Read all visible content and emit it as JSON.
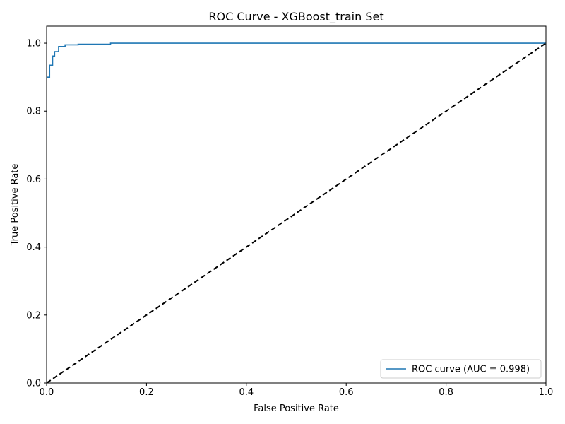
{
  "chart_data": {
    "type": "line",
    "title": "ROC Curve - XGBoost_train Set",
    "xlabel": "False Positive Rate",
    "ylabel": "True Positive Rate",
    "xlim": [
      0.0,
      1.0
    ],
    "ylim": [
      0.0,
      1.05
    ],
    "x_ticks": [
      "0.0",
      "0.2",
      "0.4",
      "0.6",
      "0.8",
      "1.0"
    ],
    "y_ticks": [
      "0.0",
      "0.2",
      "0.4",
      "0.6",
      "0.8",
      "1.0"
    ],
    "grid": false,
    "legend_position": "lower-right",
    "series": [
      {
        "name": "ROC curve (AUC = 0.998)",
        "color": "#1f77b4",
        "style": "solid",
        "points": [
          [
            0.0,
            0.9
          ],
          [
            0.006,
            0.9
          ],
          [
            0.006,
            0.935
          ],
          [
            0.012,
            0.935
          ],
          [
            0.012,
            0.962
          ],
          [
            0.016,
            0.962
          ],
          [
            0.016,
            0.975
          ],
          [
            0.024,
            0.975
          ],
          [
            0.024,
            0.99
          ],
          [
            0.037,
            0.99
          ],
          [
            0.037,
            0.995
          ],
          [
            0.063,
            0.995
          ],
          [
            0.063,
            0.997
          ],
          [
            0.128,
            0.997
          ],
          [
            0.128,
            1.0
          ],
          [
            1.0,
            1.0
          ]
        ]
      },
      {
        "color": "#000000",
        "style": "dashed",
        "points": [
          [
            0.0,
            0.0
          ],
          [
            1.0,
            1.0
          ]
        ]
      }
    ]
  }
}
